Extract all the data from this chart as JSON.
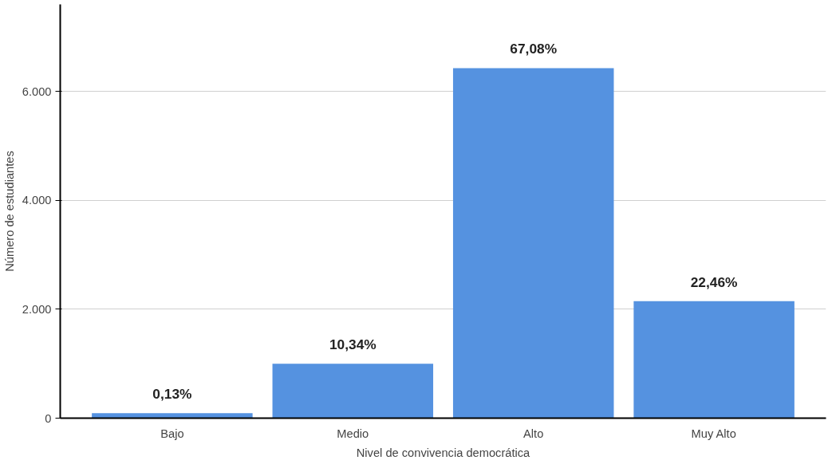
{
  "chart_data": {
    "type": "bar",
    "xlabel": "Nivel de convivencia democrática",
    "ylabel": "Número de estudiantes",
    "categories": [
      "Bajo",
      "Medio",
      "Alto",
      "Muy Alto"
    ],
    "values": [
      90,
      1000,
      6430,
      2150
    ],
    "annotations": [
      {
        "text": "0,13%",
        "x": "Bajo",
        "y": 90
      },
      {
        "text": "10,34%",
        "x": "Medio",
        "y": 1000
      },
      {
        "text": "67,08%",
        "x": "Alto",
        "y": 6430
      },
      {
        "text": "22,46%",
        "x": "Muy Alto",
        "y": 2150
      }
    ],
    "color": "#5592e0",
    "ylim": [
      0,
      7600
    ],
    "yticks": [
      {
        "value": 0,
        "label": "0"
      },
      {
        "value": 2000,
        "label": "2.000"
      },
      {
        "value": 4000,
        "label": "4.000"
      },
      {
        "value": 6000,
        "label": "6.000"
      }
    ],
    "grid": "y"
  }
}
